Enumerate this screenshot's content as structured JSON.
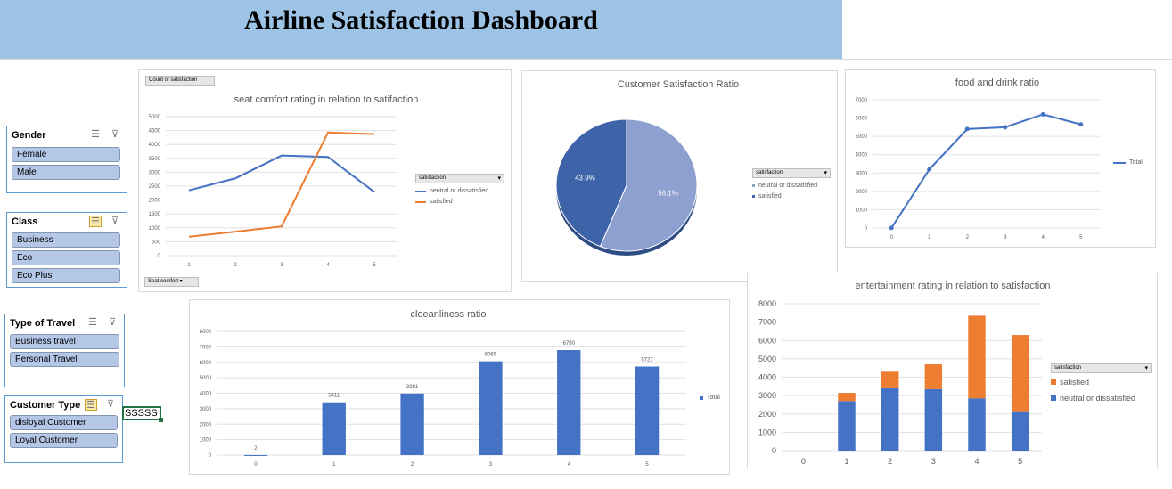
{
  "dashboard": {
    "title": "Airline Satisfaction Dashboard"
  },
  "slicers": {
    "gender": {
      "title": "Gender",
      "items": [
        "Female",
        "Male"
      ]
    },
    "class": {
      "title": "Class",
      "items": [
        "Business",
        "Eco",
        "Eco Plus"
      ]
    },
    "travel": {
      "title": "Type of Travel",
      "items": [
        "Business travel",
        "Personal Travel"
      ]
    },
    "customer": {
      "title": "Customer Type",
      "items": [
        "disloyal Customer",
        "Loyal Customer"
      ]
    }
  },
  "cell": {
    "value": "SSSSS"
  },
  "colors": {
    "blue": "#4472c4",
    "orange": "#ed7d31",
    "pie_dark": "#3f63a8",
    "pie_light": "#8ea0d0"
  },
  "chart_data": [
    {
      "type": "line",
      "title": "seat comfort rating in relation to satifaction",
      "value_button": "Count of satisfaction",
      "axis_button": "Seat comfort",
      "legend_title": "satisfaction",
      "categories": [
        "1",
        "2",
        "3",
        "4",
        "5"
      ],
      "series": [
        {
          "name": "neutral or dissatisfied",
          "values": [
            2350,
            2780,
            3600,
            3550,
            2290
          ]
        },
        {
          "name": "satisfied",
          "values": [
            680,
            860,
            1050,
            4430,
            4370
          ]
        }
      ],
      "ylim": [
        0,
        5000
      ],
      "yticks": [
        "0",
        "500",
        "1000",
        "1500",
        "2000",
        "2500",
        "3000",
        "3500",
        "4000",
        "4500",
        "5000"
      ]
    },
    {
      "type": "pie",
      "title": "Customer Satisfaction Ratio",
      "legend_title": "satisfaction",
      "slices": [
        {
          "name": "neutral or dissatisfied",
          "value": 56.1,
          "label": "56.1%"
        },
        {
          "name": "satisfied",
          "value": 43.9,
          "label": "43.9%"
        }
      ]
    },
    {
      "type": "line",
      "title": "food and drink ratio",
      "categories": [
        "0",
        "1",
        "2",
        "3",
        "4",
        "5"
      ],
      "series": [
        {
          "name": "Total",
          "values": [
            5,
            3200,
            5400,
            5500,
            6200,
            5650
          ]
        }
      ],
      "ylim": [
        0,
        7000
      ],
      "yticks": [
        "0",
        "1000",
        "2000",
        "3000",
        "4000",
        "5000",
        "6000",
        "7000"
      ]
    },
    {
      "type": "bar",
      "title": "cloeanliness ratio",
      "categories": [
        "0",
        "1",
        "2",
        "3",
        "4",
        "5"
      ],
      "series": [
        {
          "name": "Total",
          "values": [
            2,
            3411,
            3981,
            6065,
            6790,
            5727
          ]
        }
      ],
      "data_labels": [
        "2",
        "3411",
        "3981",
        "6065",
        "6790",
        "5727"
      ],
      "ylim": [
        0,
        8000
      ],
      "yticks": [
        "0",
        "1000",
        "2000",
        "3000",
        "4000",
        "5000",
        "6000",
        "7000",
        "8000"
      ]
    },
    {
      "type": "bar",
      "stacked": true,
      "title": "entertainment rating in relation to satisfaction",
      "legend_title": "satisfaction",
      "categories": [
        "0",
        "1",
        "2",
        "3",
        "4",
        "5"
      ],
      "series": [
        {
          "name": "neutral or dissatisfied",
          "values": [
            0,
            2700,
            3400,
            3350,
            2850,
            2150
          ]
        },
        {
          "name": "satisfied",
          "values": [
            0,
            450,
            900,
            1350,
            4500,
            4150
          ]
        }
      ],
      "ylim": [
        0,
        8000
      ],
      "yticks": [
        "0",
        "1000",
        "2000",
        "3000",
        "4000",
        "5000",
        "6000",
        "7000",
        "8000"
      ]
    }
  ]
}
